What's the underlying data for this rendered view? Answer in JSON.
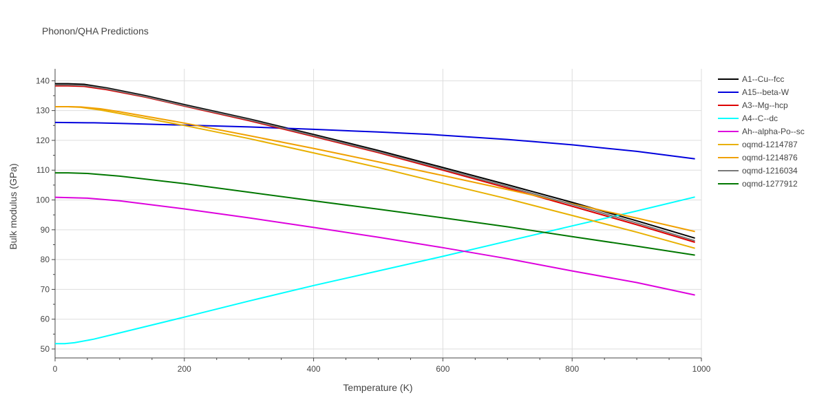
{
  "chart_data": {
    "type": "line",
    "title": "Phonon/QHA Predictions",
    "xlabel": "Temperature (K)",
    "ylabel": "Bulk modulus (GPa)",
    "xlim": [
      0,
      1000
    ],
    "ylim": [
      47,
      144
    ],
    "xticks": [
      0,
      200,
      400,
      600,
      800,
      1000
    ],
    "yticks": [
      50,
      60,
      70,
      80,
      90,
      100,
      110,
      120,
      130,
      140
    ],
    "grid": true,
    "legend_position": "right",
    "series": [
      {
        "name": "A1--Cu--fcc",
        "color": "#000000",
        "x": [
          0,
          20,
          45,
          80,
          140,
          200,
          300,
          400,
          500,
          600,
          700,
          800,
          900,
          990
        ],
        "y": [
          139.0,
          139.0,
          138.8,
          137.6,
          135.0,
          132.0,
          127.2,
          122.0,
          116.6,
          110.9,
          105.1,
          99.2,
          93.0,
          87.2
        ]
      },
      {
        "name": "A15--beta-W",
        "color": "#0000dd",
        "x": [
          0,
          60,
          100,
          200,
          300,
          400,
          500,
          580,
          700,
          800,
          900,
          990
        ],
        "y": [
          126.0,
          125.9,
          125.7,
          125.1,
          124.5,
          123.7,
          122.8,
          122.0,
          120.3,
          118.5,
          116.3,
          113.8
        ]
      },
      {
        "name": "A3--Mg--hcp",
        "color": "#dd0000",
        "x": [
          0,
          20,
          45,
          80,
          140,
          200,
          300,
          400,
          500,
          600,
          700,
          800,
          900,
          990
        ],
        "y": [
          138.3,
          138.3,
          138.1,
          137.0,
          134.5,
          131.5,
          126.6,
          121.3,
          115.9,
          110.0,
          104.0,
          97.9,
          91.7,
          85.8
        ]
      },
      {
        "name": "A4--C--dc",
        "color": "#00ffff",
        "x": [
          0,
          15,
          30,
          60,
          100,
          200,
          300,
          400,
          500,
          600,
          700,
          800,
          900,
          990
        ],
        "y": [
          51.8,
          51.8,
          52.1,
          53.3,
          55.4,
          60.7,
          66.1,
          71.3,
          76.2,
          81.1,
          86.2,
          91.3,
          96.3,
          101.0
        ]
      },
      {
        "name": "Ah--alpha-Po--sc",
        "color": "#dd00dd",
        "x": [
          0,
          20,
          50,
          100,
          200,
          300,
          400,
          500,
          600,
          700,
          800,
          900,
          990
        ],
        "y": [
          100.9,
          100.8,
          100.6,
          99.7,
          97.0,
          94.0,
          90.8,
          87.5,
          84.0,
          80.3,
          76.2,
          72.3,
          68.1
        ]
      },
      {
        "name": "oqmd-1214787",
        "color": "#e8b000",
        "x": [
          0,
          20,
          40,
          70,
          100,
          200,
          300,
          400,
          500,
          600,
          700,
          800,
          900,
          990
        ],
        "y": [
          131.3,
          131.3,
          131.1,
          130.2,
          129.0,
          125.0,
          120.6,
          115.8,
          110.9,
          105.6,
          100.4,
          94.8,
          89.2,
          83.8
        ]
      },
      {
        "name": "oqmd-1214876",
        "color": "#f0a000",
        "x": [
          0,
          20,
          40,
          70,
          100,
          200,
          300,
          400,
          500,
          600,
          700,
          800,
          900,
          990
        ],
        "y": [
          131.3,
          131.3,
          131.2,
          130.6,
          129.6,
          125.8,
          121.6,
          117.3,
          112.8,
          108.2,
          103.5,
          98.7,
          93.9,
          89.4
        ]
      },
      {
        "name": "oqmd-1216034",
        "color": "#777777",
        "x": [
          0,
          20,
          45,
          80,
          140,
          200,
          300,
          400,
          500,
          600,
          700,
          800,
          900,
          990
        ],
        "y": [
          138.6,
          138.6,
          138.4,
          137.3,
          134.7,
          131.7,
          126.9,
          121.6,
          116.2,
          110.4,
          104.5,
          98.5,
          92.3,
          86.3
        ]
      },
      {
        "name": "oqmd-1277912",
        "color": "#007700",
        "x": [
          0,
          20,
          50,
          100,
          200,
          300,
          400,
          500,
          600,
          700,
          800,
          900,
          990
        ],
        "y": [
          109.1,
          109.1,
          108.9,
          108.0,
          105.5,
          102.6,
          99.7,
          96.9,
          94.0,
          91.0,
          87.7,
          84.5,
          81.5
        ]
      }
    ]
  }
}
